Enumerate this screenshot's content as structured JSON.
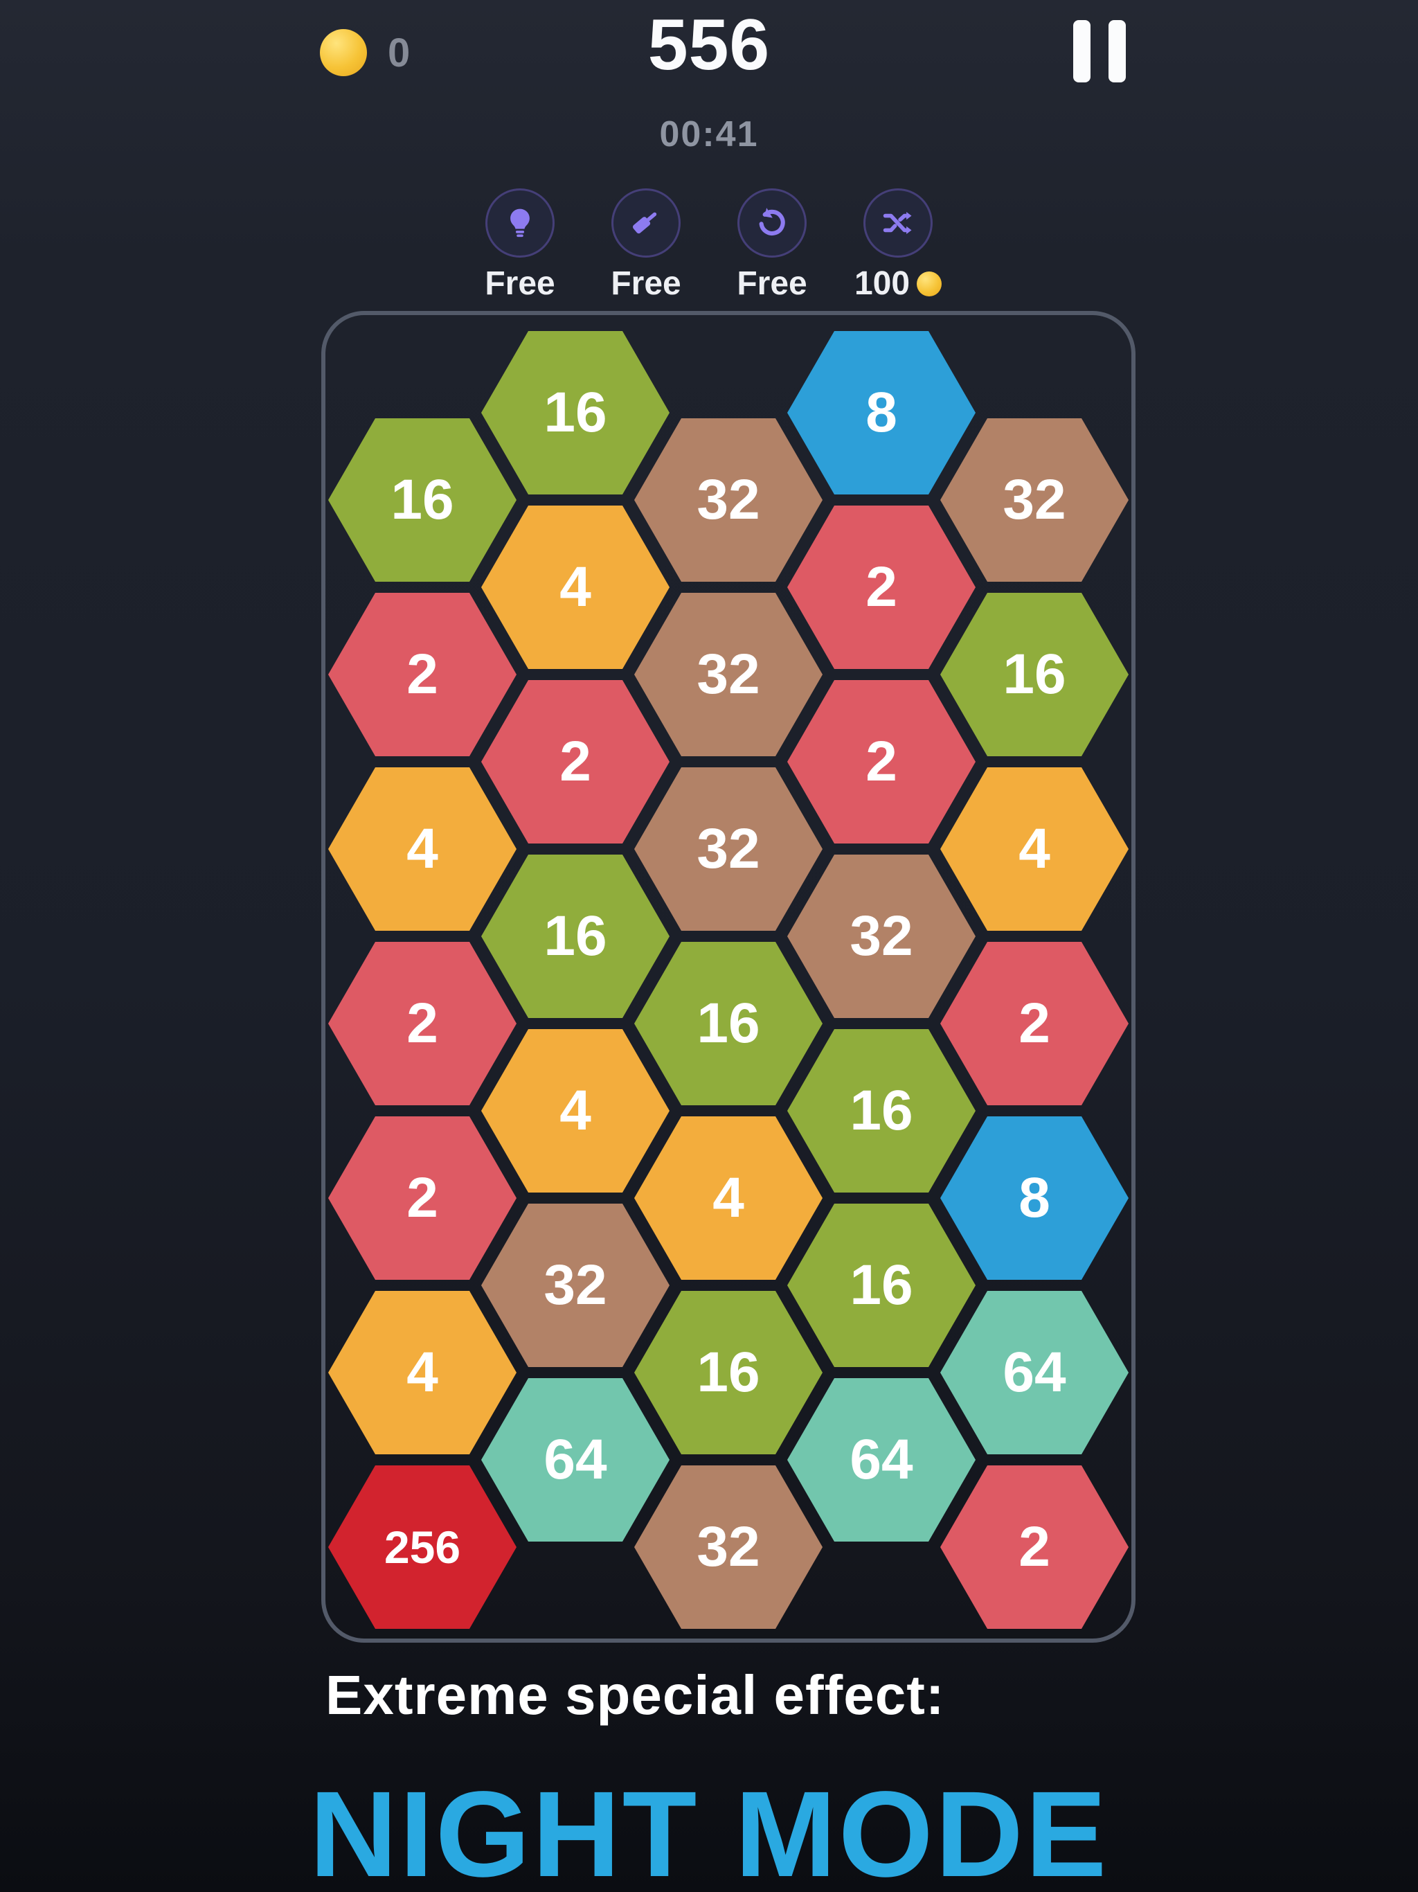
{
  "colors": {
    "background_top": "#242833",
    "background_bottom": "#0b0d12",
    "powerup_icon_purple": "#8d7bf0",
    "powerup_ring_purple": "#453f78",
    "coin_yellow": "#f6c336",
    "board_border_grey": "#535a69",
    "score_white": "#fafbfd",
    "muted_grey": "#8f95a2",
    "night_mode_blue": "#2aa9e1"
  },
  "header": {
    "coin_count": "0",
    "score": "556",
    "timer": "00:41"
  },
  "powerups": [
    {
      "id": "hint",
      "icon": "lightbulb-icon",
      "label": "Free"
    },
    {
      "id": "hammer",
      "icon": "hammer-icon",
      "label": "Free"
    },
    {
      "id": "undo",
      "icon": "undo-icon",
      "label": "Free"
    },
    {
      "id": "shuffle",
      "icon": "shuffle-icon",
      "label": "100",
      "cost_coin": true
    }
  ],
  "board": {
    "columns": [
      {
        "values": [
          16,
          2,
          4,
          2,
          2,
          4,
          256
        ]
      },
      {
        "values": [
          16,
          4,
          2,
          16,
          4,
          32,
          64
        ]
      },
      {
        "values": [
          32,
          32,
          32,
          16,
          4,
          16,
          32
        ]
      },
      {
        "values": [
          8,
          2,
          2,
          32,
          16,
          16,
          64
        ]
      },
      {
        "values": [
          32,
          16,
          4,
          2,
          8,
          64,
          2
        ]
      }
    ],
    "tile_colors": {
      "2": "#de5a64",
      "4": "#f3ad3d",
      "8": "#2d9fd8",
      "16": "#90ad3c",
      "32": "#b28267",
      "64": "#72c6ad",
      "256": "#d2232e"
    }
  },
  "caption": {
    "line1": "Extreme special effect:",
    "line2": "NIGHT MODE"
  }
}
